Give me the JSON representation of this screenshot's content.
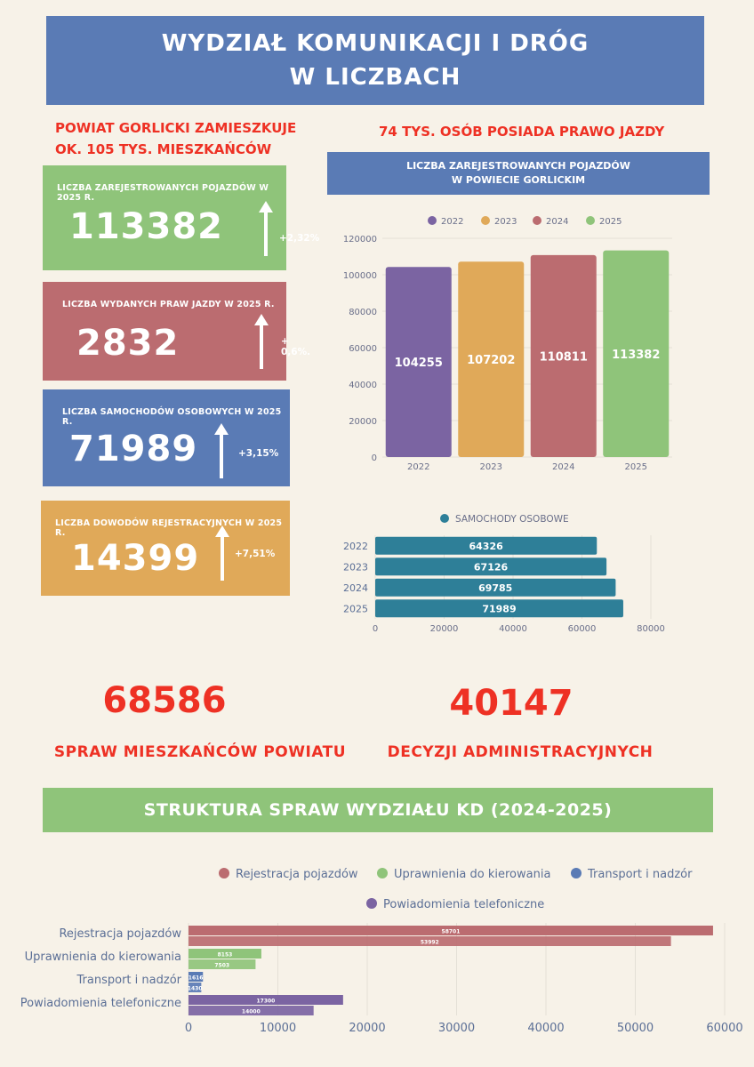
{
  "header": {
    "title_line1": "WYDZIAŁ KOMUNIKACJI I DRÓG",
    "title_line2": "W LICZBACH"
  },
  "intro": {
    "population_line1": "POWIAT GORLICKI ZAMIESZKUJE",
    "population_line2": "OK. 105 TYS. MIESZKAŃCÓW",
    "licence_note": "74 TYS. OSÓB POSIADA PRAWO JAZDY"
  },
  "stats": [
    {
      "label": "LICZBA ZAREJESTROWANYCH POJAZDÓW W 2025 R.",
      "value": "113382",
      "change": "+2,32%",
      "color": "#8fc47a"
    },
    {
      "label": "LICZBA WYDANYCH PRAW JAZDY W 2025 R.",
      "value": "2832",
      "change": "+ 0,6%.",
      "color": "#bb6c70"
    },
    {
      "label": "LICZBA SAMOCHODÓW OSOBOWYCH W 2025 R.",
      "value": "71989",
      "change": "+3,15%",
      "color": "#5a7bb5"
    },
    {
      "label": "LICZBA DOWODÓW REJESTRACYJNYCH W 2025 R.",
      "value": "14399",
      "change": "+7,51%",
      "color": "#e0a959"
    }
  ],
  "totals": {
    "cases_value": "68586",
    "cases_label": "SPRAW MIESZKAŃCÓW POWIATU",
    "decisions_value": "40147",
    "decisions_label": "DECYZJI ADMINISTRACYJNYCH"
  },
  "structure_banner": "STRUKTURA SPRAW WYDZIAŁU KD (2024-2025)",
  "chart_data": [
    {
      "type": "bar",
      "title": "LICZBA ZAREJESTROWANYCH POJAZDÓW W POWIECIE GORLICKIM",
      "title_line1": "LICZBA ZAREJESTROWANYCH POJAZDÓW",
      "title_line2": "W POWIECIE GORLICKIM",
      "categories": [
        "2022",
        "2023",
        "2024",
        "2025"
      ],
      "values": [
        104255,
        107202,
        110811,
        113382
      ],
      "colors": [
        "#7b64a2",
        "#e0a959",
        "#bb6c70",
        "#8fc47a"
      ],
      "legend": [
        "2022",
        "2023",
        "2024",
        "2025"
      ],
      "legend_position": "top",
      "ylim": [
        0,
        120000
      ],
      "yticks": [
        0,
        20000,
        40000,
        60000,
        80000,
        100000,
        120000
      ],
      "grid": true
    },
    {
      "type": "bar",
      "orientation": "horizontal",
      "categories": [
        "2022",
        "2023",
        "2024",
        "2025"
      ],
      "series": [
        {
          "name": "SAMOCHODY OSOBOWE",
          "values": [
            64326,
            67126,
            69785,
            71989
          ],
          "color": "#2e7f98"
        }
      ],
      "legend_position": "top",
      "xlim": [
        0,
        80000
      ],
      "xticks": [
        0,
        20000,
        40000,
        60000,
        80000
      ],
      "grid": true
    },
    {
      "type": "bar",
      "orientation": "horizontal",
      "categories": [
        "Rejestracja pojazdów",
        "Uprawnienia do kierowania",
        "Transport i nadzór",
        "Powiadomienia telefoniczne"
      ],
      "values_a": [
        58701,
        8153,
        1616,
        17300
      ],
      "values_b": [
        53992,
        7503,
        1430,
        14000
      ],
      "colors_a": [
        "#bb6c70",
        "#8fc47a",
        "#5a7bb5",
        "#7b64a2"
      ],
      "colors_b": [
        "#bb6c70",
        "#8fc47a",
        "#5a7bb5",
        "#7b64a2"
      ],
      "legend": [
        {
          "name": "Rejestracja pojazdów",
          "color": "#bb6c70"
        },
        {
          "name": "Uprawnienia do kierowania",
          "color": "#8fc47a"
        },
        {
          "name": "Transport i nadzór",
          "color": "#5a7bb5"
        },
        {
          "name": "Powiadomienia telefoniczne",
          "color": "#7b64a2"
        }
      ],
      "legend_position": "top",
      "xlim": [
        0,
        60000
      ],
      "xticks": [
        0,
        10000,
        20000,
        30000,
        40000,
        50000,
        60000
      ],
      "grid": true
    }
  ]
}
